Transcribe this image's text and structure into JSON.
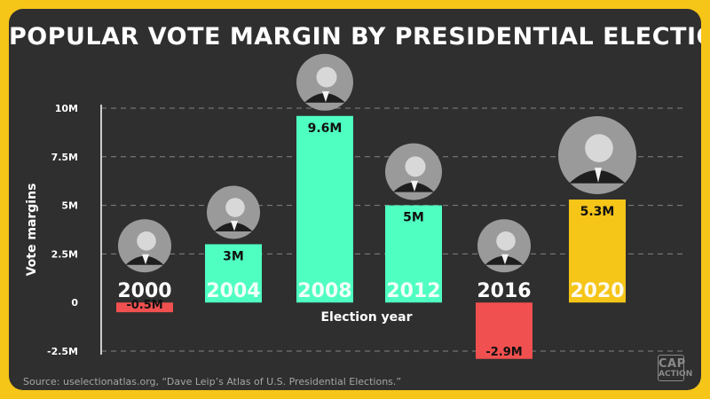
{
  "title": "POPULAR VOTE MARGIN BY PRESIDENTIAL ELECTION",
  "source": "Source: uselectionatlas.org, “Dave Leip’s Atlas of U.S. Presidential Elections.”",
  "logo": {
    "line1": "CAP",
    "line2": "ACTION"
  },
  "colors": {
    "background": "#f5c518",
    "panel": "#2f2f2f",
    "positive_bar": "#4fffc1",
    "negative_bar": "#f0504f",
    "highlight_bar": "#f5c518",
    "grid": "#c8c8c8"
  },
  "chart_data": {
    "type": "bar",
    "title": "POPULAR VOTE MARGIN BY PRESIDENTIAL ELECTION",
    "xlabel": "Election year",
    "ylabel": "Vote margins",
    "categories": [
      "2000",
      "2004",
      "2008",
      "2012",
      "2016",
      "2020"
    ],
    "values": [
      -0.5,
      3,
      9.6,
      5,
      -2.9,
      5.3
    ],
    "value_labels": [
      "-0.5M",
      "3M",
      "9.6M",
      "5M",
      "-2.9M",
      "5.3M"
    ],
    "bar_colors": [
      "#f0504f",
      "#4fffc1",
      "#4fffc1",
      "#4fffc1",
      "#f0504f",
      "#f5c518"
    ],
    "ylim": [
      -2.5,
      10
    ],
    "yticks": [
      -2.5,
      0,
      2.5,
      5,
      7.5,
      10
    ],
    "ytick_labels": [
      "-2.5M",
      "0",
      "2.5M",
      "5M",
      "7.5M",
      "10M"
    ],
    "grid": true,
    "portraits": [
      "portrait",
      "portrait",
      "portrait",
      "portrait",
      "portrait",
      "portrait"
    ]
  }
}
